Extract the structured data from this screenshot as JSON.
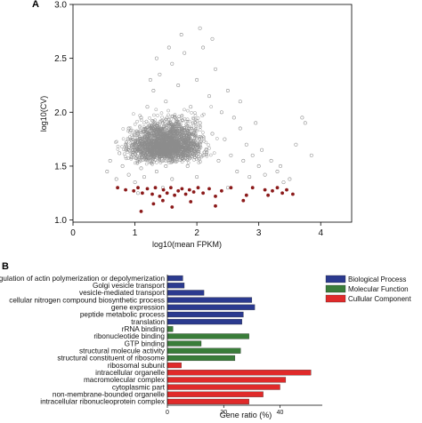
{
  "panels": {
    "a": "A",
    "b": "B"
  },
  "chart_data": [
    {
      "type": "scatter",
      "xlabel": "log10(mean FPKM)",
      "ylabel": "log10(CV)",
      "xlim": [
        0,
        4.5
      ],
      "ylim": [
        0.98,
        3.0
      ],
      "xticks": [
        "0",
        "1",
        "2",
        "3",
        "4"
      ],
      "yticks": [
        "1.0",
        "1.5",
        "2.0",
        "2.5",
        "3.0"
      ],
      "colors": {
        "background_points": "#8c8c8c",
        "highlighted_points": "#8b1a1a"
      },
      "series": [
        {
          "marker": "open-circle",
          "points": [
            [
              0.55,
              1.45
            ],
            [
              0.6,
              1.55
            ],
            [
              0.7,
              1.38
            ],
            [
              0.75,
              1.62
            ],
            [
              0.8,
              1.5
            ],
            [
              0.85,
              1.7
            ],
            [
              0.9,
              1.42
            ],
            [
              0.95,
              1.58
            ],
            [
              1.0,
              1.35
            ],
            [
              1.0,
              1.65
            ],
            [
              1.05,
              1.8
            ],
            [
              1.1,
              1.48
            ],
            [
              1.1,
              1.95
            ],
            [
              1.15,
              1.4
            ],
            [
              1.2,
              1.72
            ],
            [
              1.2,
              2.05
            ],
            [
              1.25,
              1.55
            ],
            [
              1.3,
              1.85
            ],
            [
              1.3,
              2.2
            ],
            [
              1.35,
              1.45
            ],
            [
              1.4,
              1.65
            ],
            [
              1.4,
              2.35
            ],
            [
              1.45,
              1.9
            ],
            [
              1.5,
              1.5
            ],
            [
              1.5,
              2.1
            ],
            [
              1.55,
              1.75
            ],
            [
              1.6,
              2.45
            ],
            [
              1.6,
              1.38
            ],
            [
              1.65,
              1.95
            ],
            [
              1.7,
              1.6
            ],
            [
              1.7,
              2.25
            ],
            [
              1.75,
              1.82
            ],
            [
              1.8,
              2.55
            ],
            [
              1.85,
              1.5
            ],
            [
              1.9,
              2.05
            ],
            [
              1.95,
              1.7
            ],
            [
              2.0,
              2.3
            ],
            [
              2.0,
              1.4
            ],
            [
              2.05,
              1.9
            ],
            [
              2.1,
              2.6
            ],
            [
              2.15,
              1.65
            ],
            [
              2.2,
              2.15
            ],
            [
              2.25,
              1.8
            ],
            [
              2.3,
              2.4
            ],
            [
              2.35,
              1.55
            ],
            [
              2.4,
              2.0
            ],
            [
              2.45,
              1.75
            ],
            [
              2.5,
              2.2
            ],
            [
              2.55,
              1.6
            ],
            [
              2.6,
              1.95
            ],
            [
              2.65,
              1.45
            ],
            [
              2.7,
              1.85
            ],
            [
              2.75,
              1.55
            ],
            [
              2.8,
              1.7
            ],
            [
              2.85,
              1.4
            ],
            [
              2.9,
              1.6
            ],
            [
              3.0,
              1.5
            ],
            [
              3.05,
              1.65
            ],
            [
              3.1,
              1.42
            ],
            [
              3.2,
              1.55
            ],
            [
              3.3,
              1.45
            ],
            [
              3.4,
              1.35
            ],
            [
              3.5,
              1.38
            ],
            [
              3.6,
              1.7
            ],
            [
              3.7,
              1.95
            ],
            [
              3.75,
              1.9
            ],
            [
              3.85,
              1.6
            ],
            [
              1.75,
              2.72
            ],
            [
              2.05,
              2.78
            ],
            [
              1.55,
              2.6
            ],
            [
              2.25,
              2.68
            ],
            [
              1.35,
              2.5
            ],
            [
              0.9,
              1.85
            ],
            [
              1.25,
              2.3
            ],
            [
              2.7,
              2.1
            ],
            [
              2.95,
              1.9
            ],
            [
              3.35,
              1.5
            ],
            [
              1.05,
              1.25
            ],
            [
              2.5,
              1.3
            ],
            [
              1.45,
              1.3
            ]
          ]
        },
        {
          "marker": "filled-circle",
          "points": [
            [
              0.72,
              1.3
            ],
            [
              0.85,
              1.28
            ],
            [
              0.98,
              1.27
            ],
            [
              1.05,
              1.3
            ],
            [
              1.12,
              1.25
            ],
            [
              1.2,
              1.29
            ],
            [
              1.28,
              1.24
            ],
            [
              1.33,
              1.3
            ],
            [
              1.4,
              1.22
            ],
            [
              1.46,
              1.28
            ],
            [
              1.52,
              1.25
            ],
            [
              1.58,
              1.3
            ],
            [
              1.64,
              1.23
            ],
            [
              1.7,
              1.27
            ],
            [
              1.76,
              1.29
            ],
            [
              1.82,
              1.24
            ],
            [
              1.88,
              1.28
            ],
            [
              1.95,
              1.26
            ],
            [
              2.02,
              1.3
            ],
            [
              2.1,
              1.25
            ],
            [
              2.2,
              1.29
            ],
            [
              2.3,
              1.22
            ],
            [
              2.4,
              1.27
            ],
            [
              2.55,
              1.3
            ],
            [
              1.3,
              1.15
            ],
            [
              1.45,
              1.18
            ],
            [
              1.6,
              1.12
            ],
            [
              1.9,
              1.17
            ],
            [
              2.3,
              1.13
            ],
            [
              1.1,
              1.08
            ],
            [
              2.8,
              1.23
            ],
            [
              2.75,
              1.18
            ],
            [
              2.9,
              1.3
            ],
            [
              3.1,
              1.28
            ],
            [
              3.15,
              1.23
            ],
            [
              3.22,
              1.27
            ],
            [
              3.3,
              1.3
            ],
            [
              3.38,
              1.25
            ],
            [
              3.45,
              1.28
            ],
            [
              3.55,
              1.24
            ]
          ]
        }
      ]
    },
    {
      "type": "bar",
      "orientation": "horizontal",
      "xlabel": "Gene ratio (%)",
      "xlim": [
        0,
        55
      ],
      "xticks": [
        0,
        20,
        40
      ],
      "legend": {
        "placement": "right",
        "entries": [
          {
            "label": "Biological Process",
            "color": "#2b3a8f"
          },
          {
            "label": "Molecular Function",
            "color": "#3a7d3a"
          },
          {
            "label": "Cullular Component",
            "color": "#e02a2a"
          }
        ]
      },
      "categories": [
        "regulation of actin polymerization or depolymerization",
        "Golgi vesicle transport",
        "vesicle-mediated transport",
        "cellular nitrogen compound biosynthetic process",
        "gene expression",
        "peptide metabolic process",
        "translation",
        "rRNA binding",
        "ribonucleotide binding",
        "GTP binding",
        "structural molecule activity",
        "structural constituent of ribosome",
        "ribosomal subunit",
        "intracellular organelle",
        "macromolecular complex",
        "cytoplasmic part",
        "non-membrane-bounded organelle",
        "intracellular ribonucleoprotein complex"
      ],
      "values": [
        5.5,
        6,
        13,
        30,
        31,
        27,
        26.5,
        2,
        29,
        12,
        26,
        24,
        5,
        51,
        42,
        40,
        34,
        29
      ],
      "groups": [
        0,
        0,
        0,
        0,
        0,
        0,
        0,
        1,
        1,
        1,
        1,
        1,
        2,
        2,
        2,
        2,
        2,
        2
      ]
    }
  ]
}
